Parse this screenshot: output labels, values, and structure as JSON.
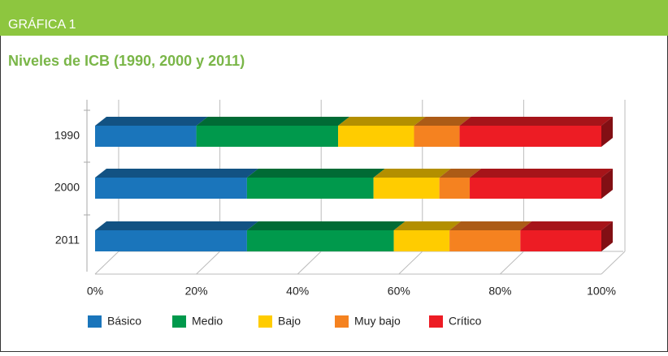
{
  "header": {
    "label": "GRÁFICA 1"
  },
  "chart_data": {
    "type": "stacked-bar-horizontal",
    "title": "Niveles de ICB (1990, 2000 y 2011)",
    "categories": [
      "1990",
      "2000",
      "2011"
    ],
    "series": [
      {
        "name": "Básico",
        "color": "#1a75bb",
        "values": [
          20,
          30,
          30
        ]
      },
      {
        "name": "Medio",
        "color": "#00994c",
        "values": [
          28,
          25,
          29
        ]
      },
      {
        "name": "Bajo",
        "color": "#ffcc00",
        "values": [
          15,
          13,
          11
        ]
      },
      {
        "name": "Muy bajo",
        "color": "#f58220",
        "values": [
          9,
          6,
          14
        ]
      },
      {
        "name": "Crítico",
        "color": "#ed1c24",
        "values": [
          28,
          26,
          16
        ]
      }
    ],
    "xlim": [
      0,
      100
    ],
    "xticks": [
      {
        "value": 0,
        "label": "0%"
      },
      {
        "value": 20,
        "label": "20%"
      },
      {
        "value": 40,
        "label": "40%"
      },
      {
        "value": 60,
        "label": "60%"
      },
      {
        "value": 80,
        "label": "80%"
      },
      {
        "value": 100,
        "label": "100%"
      }
    ],
    "grid": true,
    "legend": "bottom"
  }
}
